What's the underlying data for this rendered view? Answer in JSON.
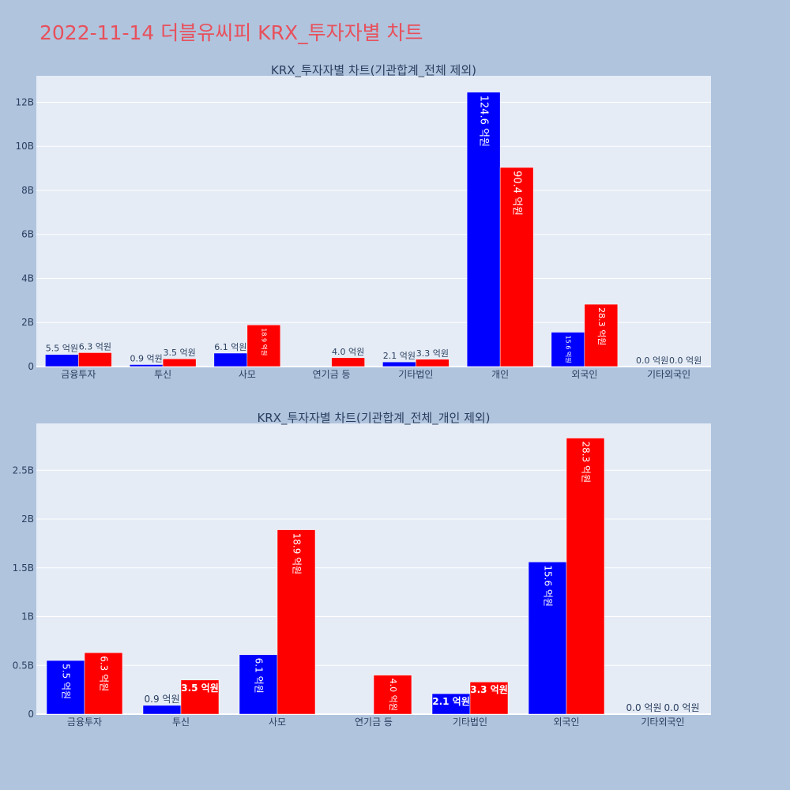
{
  "page": {
    "title": "2022-11-14 더블유씨피 KRX_투자자별 차트"
  },
  "colors": {
    "background": "#b0c4de",
    "plot_bg": "#e5ecf6",
    "buy": "#0000ff",
    "sell": "#ff0000",
    "title": "#e8505b",
    "text": "#2a3f5f"
  },
  "chart_data": [
    {
      "type": "bar",
      "title": "KRX_투자자별 차트(기관합계_전체 제외)",
      "categories": [
        "금융투자",
        "투신",
        "사모",
        "연기금 등",
        "기타법인",
        "개인",
        "외국인",
        "기타외국인"
      ],
      "series": [
        {
          "values": [
            550000000,
            90000000,
            610000000,
            0,
            210000000,
            12460000000,
            1560000000,
            0
          ],
          "labels": [
            "5.5 억원",
            "0.9 억원",
            "6.1 억원",
            "",
            "2.1 억원",
            "124.6 억원",
            "15.6 억원",
            "0.0 억원"
          ]
        },
        {
          "values": [
            630000000,
            350000000,
            1890000000,
            400000000,
            330000000,
            9040000000,
            2830000000,
            0
          ],
          "labels": [
            "6.3 억원",
            "3.5 억원",
            "18.9 억원",
            "4.0 억원",
            "3.3 억원",
            "90.4 억원",
            "28.3 억원",
            "0.0 억원"
          ]
        }
      ],
      "ylim": [
        0,
        13200000000
      ],
      "yticks": [
        0,
        2000000000,
        4000000000,
        6000000000,
        8000000000,
        10000000000,
        12000000000
      ],
      "ytick_labels": [
        "0",
        "2B",
        "4B",
        "6B",
        "8B",
        "10B",
        "12B"
      ],
      "grid": true
    },
    {
      "type": "bar",
      "title": "KRX_투자자별 차트(기관합계_전체_개인 제외)",
      "categories": [
        "금융투자",
        "투신",
        "사모",
        "연기금 등",
        "기타법인",
        "외국인",
        "기타외국인"
      ],
      "series": [
        {
          "values": [
            550000000,
            90000000,
            610000000,
            0,
            210000000,
            1560000000,
            0
          ],
          "labels": [
            "5.5 억원",
            "0.9 억원",
            "6.1 억원",
            "",
            "2.1 억원",
            "15.6 억원",
            "0.0 억원"
          ]
        },
        {
          "values": [
            630000000,
            350000000,
            1890000000,
            400000000,
            330000000,
            2830000000,
            0
          ],
          "labels": [
            "6.3 억원",
            "3.5 억원",
            "18.9 억원",
            "4.0 억원",
            "3.3 억원",
            "28.3 억원",
            "0.0 억원"
          ]
        }
      ],
      "ylim": [
        0,
        2980000000
      ],
      "yticks": [
        0,
        500000000,
        1000000000,
        1500000000,
        2000000000,
        2500000000
      ],
      "ytick_labels": [
        "0",
        "0.5B",
        "1B",
        "1.5B",
        "2B",
        "2.5B"
      ],
      "grid": true
    }
  ]
}
